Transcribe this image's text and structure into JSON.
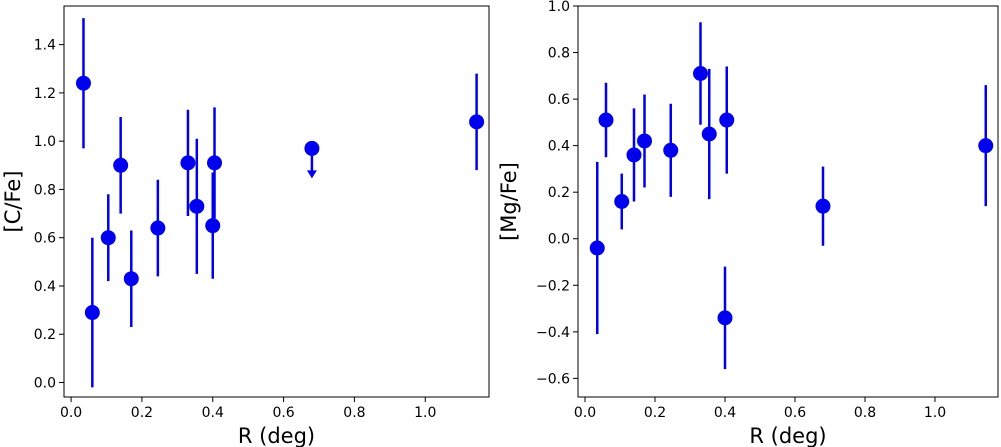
{
  "chart_data": [
    {
      "type": "scatter",
      "xlabel": "R (deg)",
      "ylabel": "[C/Fe]",
      "xlim": [
        -0.02,
        1.18
      ],
      "ylim": [
        -0.06,
        1.56
      ],
      "xticks": [
        0.0,
        0.2,
        0.4,
        0.6,
        0.8,
        1.0
      ],
      "xtick_labels": [
        "0.0",
        "0.2",
        "0.4",
        "0.6",
        "0.8",
        "1.0"
      ],
      "yticks": [
        0.0,
        0.2,
        0.4,
        0.6,
        0.8,
        1.0,
        1.2,
        1.4
      ],
      "ytick_labels": [
        "0.0",
        "0.2",
        "0.4",
        "0.6",
        "0.8",
        "1.0",
        "1.2",
        "1.4"
      ],
      "grid": false,
      "marker_color": "#0000ee",
      "points": [
        {
          "x": 0.035,
          "y": 1.24,
          "err_low": 0.27,
          "err_high": 0.27
        },
        {
          "x": 0.06,
          "y": 0.29,
          "err_low": 0.31,
          "err_high": 0.31
        },
        {
          "x": 0.105,
          "y": 0.6,
          "err_low": 0.18,
          "err_high": 0.18
        },
        {
          "x": 0.14,
          "y": 0.9,
          "err_low": 0.2,
          "err_high": 0.2
        },
        {
          "x": 0.17,
          "y": 0.43,
          "err_low": 0.2,
          "err_high": 0.2
        },
        {
          "x": 0.245,
          "y": 0.64,
          "err_low": 0.2,
          "err_high": 0.2
        },
        {
          "x": 0.33,
          "y": 0.91,
          "err_low": 0.22,
          "err_high": 0.22
        },
        {
          "x": 0.355,
          "y": 0.73,
          "err_low": 0.28,
          "err_high": 0.28
        },
        {
          "x": 0.4,
          "y": 0.65,
          "err_low": 0.22,
          "err_high": 0.22
        },
        {
          "x": 0.405,
          "y": 0.91,
          "err_low": 0.23,
          "err_high": 0.23
        },
        {
          "x": 1.145,
          "y": 1.08,
          "err_low": 0.2,
          "err_high": 0.2
        }
      ],
      "upper_limits": [
        {
          "x": 0.68,
          "y": 0.97
        }
      ]
    },
    {
      "type": "scatter",
      "xlabel": "R (deg)",
      "ylabel": "[Mg/Fe]",
      "xlim": [
        -0.02,
        1.18
      ],
      "ylim": [
        -0.68,
        1.0
      ],
      "xticks": [
        0.0,
        0.2,
        0.4,
        0.6,
        0.8,
        1.0
      ],
      "xtick_labels": [
        "0.0",
        "0.2",
        "0.4",
        "0.6",
        "0.8",
        "1.0"
      ],
      "yticks": [
        -0.6,
        -0.4,
        -0.2,
        0.0,
        0.2,
        0.4,
        0.6,
        0.8,
        1.0
      ],
      "ytick_labels": [
        "−0.6",
        "−0.4",
        "−0.2",
        "0.0",
        "0.2",
        "0.4",
        "0.6",
        "0.8",
        "1.0"
      ],
      "grid": false,
      "marker_color": "#0000ee",
      "points": [
        {
          "x": 0.035,
          "y": -0.04,
          "err_low": 0.37,
          "err_high": 0.37
        },
        {
          "x": 0.06,
          "y": 0.51,
          "err_low": 0.16,
          "err_high": 0.16
        },
        {
          "x": 0.105,
          "y": 0.16,
          "err_low": 0.12,
          "err_high": 0.12
        },
        {
          "x": 0.14,
          "y": 0.36,
          "err_low": 0.2,
          "err_high": 0.2
        },
        {
          "x": 0.17,
          "y": 0.42,
          "err_low": 0.2,
          "err_high": 0.2
        },
        {
          "x": 0.245,
          "y": 0.38,
          "err_low": 0.2,
          "err_high": 0.2
        },
        {
          "x": 0.33,
          "y": 0.71,
          "err_low": 0.22,
          "err_high": 0.22
        },
        {
          "x": 0.355,
          "y": 0.45,
          "err_low": 0.28,
          "err_high": 0.28
        },
        {
          "x": 0.4,
          "y": -0.34,
          "err_low": 0.22,
          "err_high": 0.22
        },
        {
          "x": 0.405,
          "y": 0.51,
          "err_low": 0.23,
          "err_high": 0.23
        },
        {
          "x": 0.68,
          "y": 0.14,
          "err_low": 0.17,
          "err_high": 0.17
        },
        {
          "x": 1.145,
          "y": 0.4,
          "err_low": 0.26,
          "err_high": 0.26
        }
      ],
      "upper_limits": []
    }
  ]
}
